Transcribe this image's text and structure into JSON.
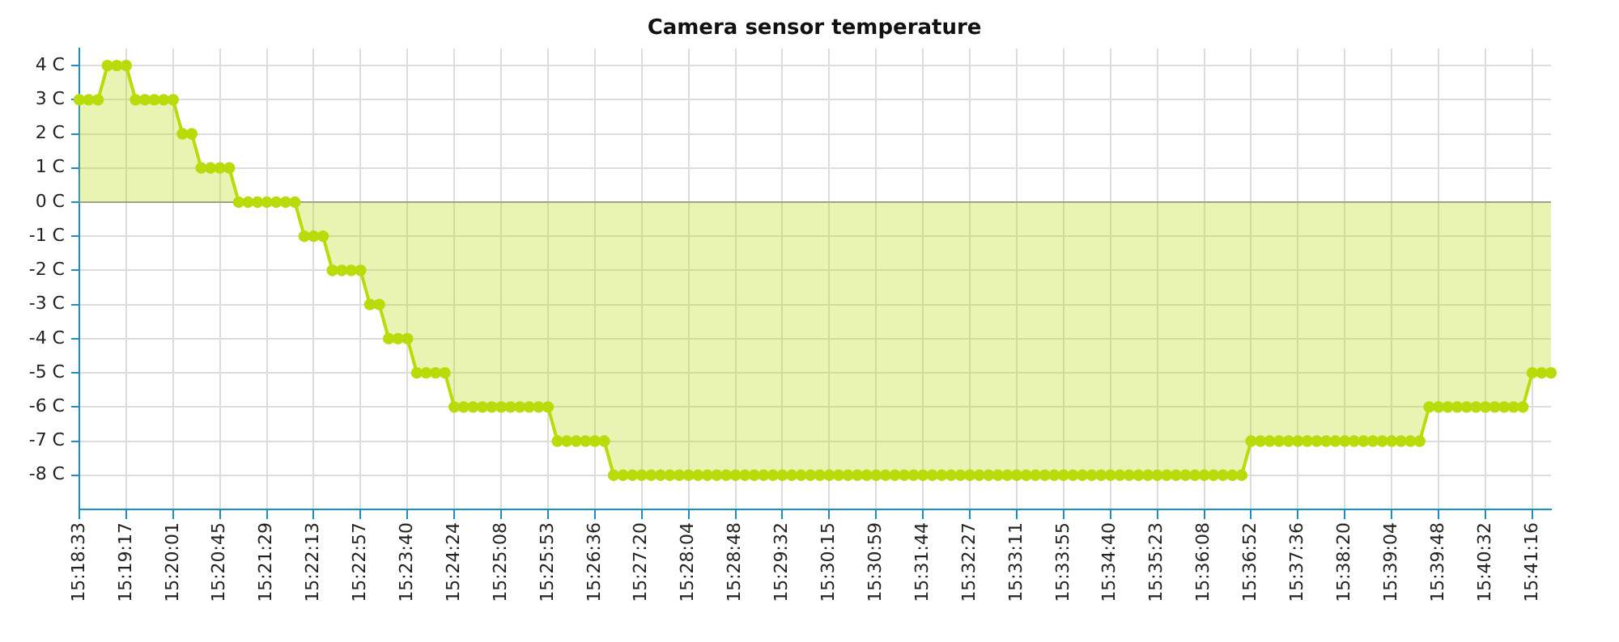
{
  "chart_data": {
    "type": "area",
    "title": "Camera sensor temperature",
    "categories": [
      "15:18:33",
      null,
      null,
      null,
      null,
      "15:19:17",
      null,
      null,
      null,
      null,
      "15:20:01",
      null,
      null,
      null,
      null,
      "15:20:45",
      null,
      null,
      null,
      null,
      "15:21:29",
      null,
      null,
      null,
      null,
      "15:22:13",
      null,
      null,
      null,
      null,
      "15:22:57",
      null,
      null,
      null,
      null,
      "15:23:40",
      null,
      null,
      null,
      null,
      "15:24:24",
      null,
      null,
      null,
      null,
      "15:25:08",
      null,
      null,
      null,
      null,
      "15:25:53",
      null,
      null,
      null,
      null,
      "15:26:36",
      null,
      null,
      null,
      null,
      "15:27:20",
      null,
      null,
      null,
      null,
      "15:28:04",
      null,
      null,
      null,
      null,
      "15:28:48",
      null,
      null,
      null,
      null,
      "15:29:32",
      null,
      null,
      null,
      null,
      "15:30:15",
      null,
      null,
      null,
      null,
      "15:30:59",
      null,
      null,
      null,
      null,
      "15:31:44",
      null,
      null,
      null,
      null,
      "15:32:27",
      null,
      null,
      null,
      null,
      "15:33:11",
      null,
      null,
      null,
      null,
      "15:33:55",
      null,
      null,
      null,
      null,
      "15:34:40",
      null,
      null,
      null,
      null,
      "15:35:23",
      null,
      null,
      null,
      null,
      "15:36:08",
      null,
      null,
      null,
      null,
      "15:36:52",
      null,
      null,
      null,
      null,
      "15:37:36",
      null,
      null,
      null,
      null,
      "15:38:20",
      null,
      null,
      null,
      null,
      "15:39:04",
      null,
      null,
      null,
      null,
      "15:39:48",
      null,
      null,
      null,
      null,
      "15:40:32",
      null,
      null,
      null,
      null,
      "15:41:16",
      null,
      null
    ],
    "series": [
      {
        "color": "#b8dc0a",
        "values": [
          3,
          3,
          3,
          4,
          4,
          4,
          3,
          3,
          3,
          3,
          3,
          2,
          2,
          1,
          1,
          1,
          1,
          0,
          0,
          0,
          0,
          0,
          0,
          0,
          -1,
          -1,
          -1,
          -2,
          -2,
          -2,
          -2,
          -3,
          -3,
          -4,
          -4,
          -4,
          -5,
          -5,
          -5,
          -5,
          -6,
          -6,
          -6,
          -6,
          -6,
          -6,
          -6,
          -6,
          -6,
          -6,
          -6,
          -7,
          -7,
          -7,
          -7,
          -7,
          -7,
          -8,
          -8,
          -8,
          -8,
          -8,
          -8,
          -8,
          -8,
          -8,
          -8,
          -8,
          -8,
          -8,
          -8,
          -8,
          -8,
          -8,
          -8,
          -8,
          -8,
          -8,
          -8,
          -8,
          -8,
          -8,
          -8,
          -8,
          -8,
          -8,
          -8,
          -8,
          -8,
          -8,
          -8,
          -8,
          -8,
          -8,
          -8,
          -8,
          -8,
          -8,
          -8,
          -8,
          -8,
          -8,
          -8,
          -8,
          -8,
          -8,
          -8,
          -8,
          -8,
          -8,
          -8,
          -8,
          -8,
          -8,
          -8,
          -8,
          -8,
          -8,
          -8,
          -8,
          -8,
          -8,
          -8,
          -8,
          -8,
          -7,
          -7,
          -7,
          -7,
          -7,
          -7,
          -7,
          -7,
          -7,
          -7,
          -7,
          -7,
          -7,
          -7,
          -7,
          -7,
          -7,
          -7,
          -7,
          -6,
          -6,
          -6,
          -6,
          -6,
          -6,
          -6,
          -6,
          -6,
          -6,
          -6,
          -5,
          -5,
          -5
        ]
      }
    ],
    "ylim": [
      -9,
      4.5
    ],
    "yticks": [
      {
        "value": -8,
        "label": "-8 C"
      },
      {
        "value": -7,
        "label": "-7 C"
      },
      {
        "value": -6,
        "label": "-6 C"
      },
      {
        "value": -5,
        "label": "-5 C"
      },
      {
        "value": -4,
        "label": "-4 C"
      },
      {
        "value": -3,
        "label": "-3 C"
      },
      {
        "value": -2,
        "label": "-2 C"
      },
      {
        "value": -1,
        "label": "-1 C"
      },
      {
        "value": 0,
        "label": "0 C"
      },
      {
        "value": 1,
        "label": "1 C"
      },
      {
        "value": 2,
        "label": "2 C"
      },
      {
        "value": 3,
        "label": "3 C"
      },
      {
        "value": 4,
        "label": "4 C"
      }
    ],
    "ref_lines": [
      {
        "axis": "y",
        "value": 0,
        "color": "#999999"
      }
    ],
    "grid": true,
    "marker": "circle",
    "line_style": "solid",
    "legend": false
  }
}
